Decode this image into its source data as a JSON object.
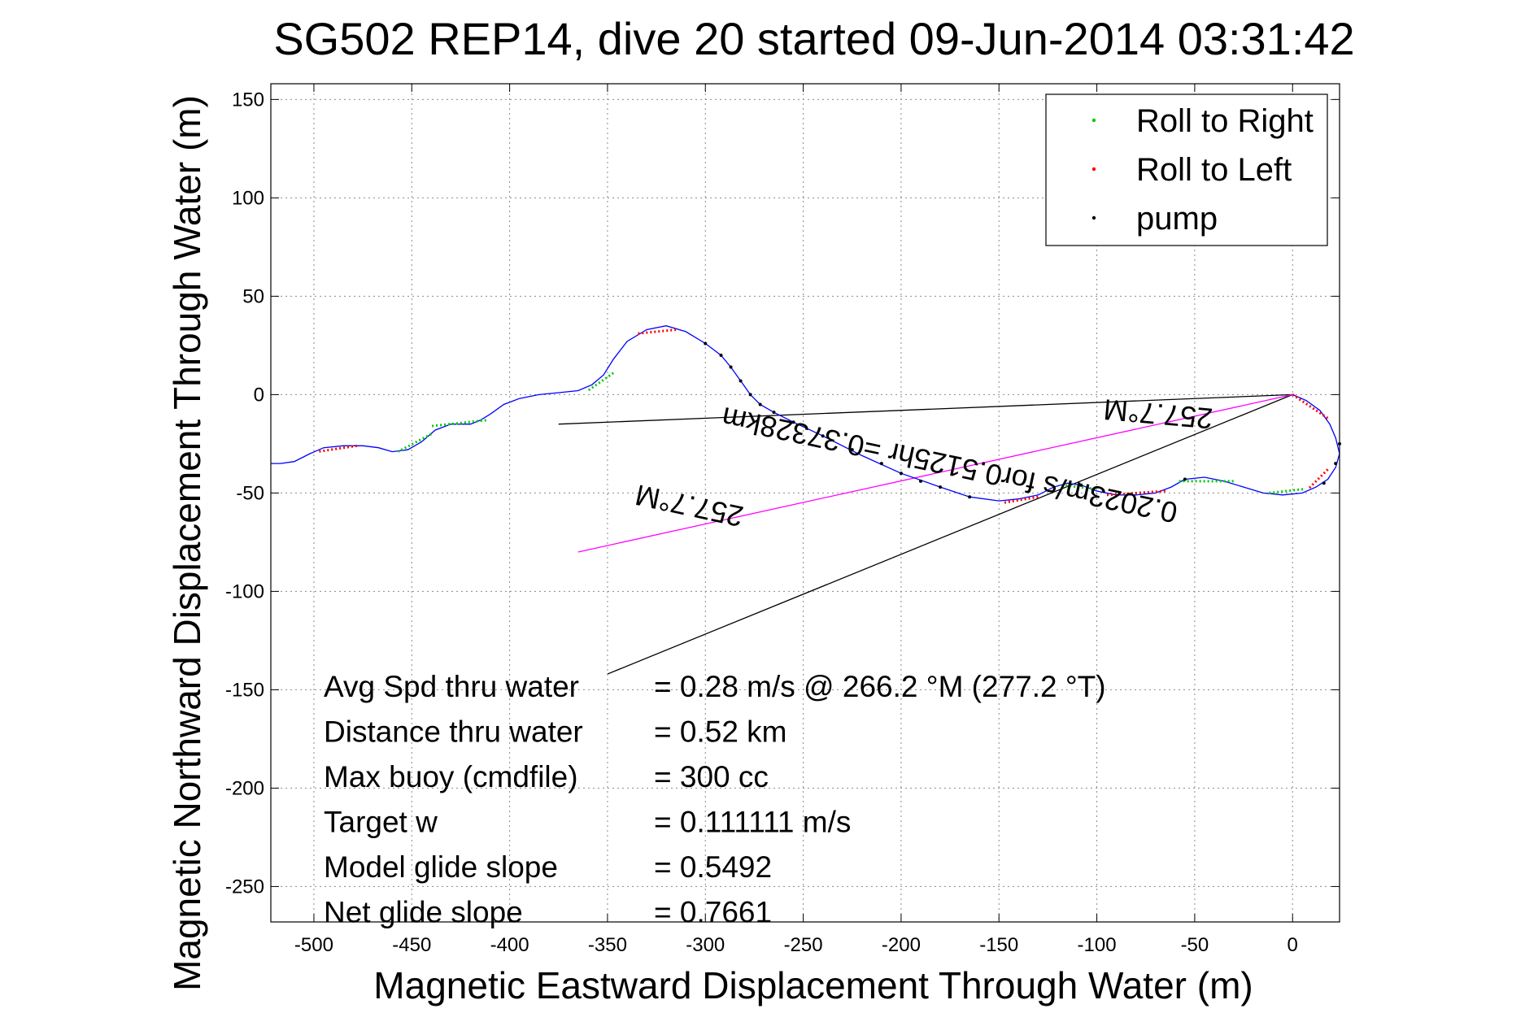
{
  "chart_data": {
    "type": "line",
    "title": "SG502 REP14, dive 20 started 09-Jun-2014 03:31:42",
    "xlabel": "Magnetic Eastward Displacement Through Water (m)",
    "ylabel": "Magnetic Northward Displacement Through Water (m)",
    "xlim": [
      -522,
      24
    ],
    "ylim": [
      -268,
      158
    ],
    "xticks": [
      -500,
      -450,
      -400,
      -350,
      -300,
      -250,
      -200,
      -150,
      -100,
      -50,
      0
    ],
    "yticks": [
      -250,
      -200,
      -150,
      -100,
      -50,
      0,
      50,
      100,
      150
    ],
    "grid": true,
    "legend_position": "top-right",
    "legend": [
      {
        "label": "Roll to Right",
        "color": "#00cc00"
      },
      {
        "label": "Roll to Left",
        "color": "#ff0000"
      },
      {
        "label": "pump",
        "color": "#000000"
      }
    ],
    "track": {
      "color": "#0000ff",
      "points": [
        [
          0,
          0
        ],
        [
          7,
          -3
        ],
        [
          14,
          -8
        ],
        [
          19,
          -15
        ],
        [
          22,
          -22
        ],
        [
          24,
          -30
        ],
        [
          22,
          -37
        ],
        [
          18,
          -43
        ],
        [
          12,
          -47
        ],
        [
          5,
          -50
        ],
        [
          -5,
          -51
        ],
        [
          -15,
          -50
        ],
        [
          -25,
          -47
        ],
        [
          -35,
          -44
        ],
        [
          -45,
          -42
        ],
        [
          -55,
          -43
        ],
        [
          -62,
          -47
        ],
        [
          -70,
          -50
        ],
        [
          -80,
          -51
        ],
        [
          -90,
          -51
        ],
        [
          -100,
          -49
        ],
        [
          -108,
          -46
        ],
        [
          -115,
          -45
        ],
        [
          -122,
          -47
        ],
        [
          -130,
          -51
        ],
        [
          -140,
          -53
        ],
        [
          -150,
          -54
        ],
        [
          -165,
          -52
        ],
        [
          -180,
          -47
        ],
        [
          -200,
          -40
        ],
        [
          -220,
          -31
        ],
        [
          -240,
          -21
        ],
        [
          -255,
          -14
        ],
        [
          -265,
          -9
        ],
        [
          -272,
          -5
        ],
        [
          -277,
          0
        ],
        [
          -282,
          7
        ],
        [
          -287,
          14
        ],
        [
          -292,
          20
        ],
        [
          -300,
          26
        ],
        [
          -310,
          32
        ],
        [
          -320,
          35
        ],
        [
          -330,
          33
        ],
        [
          -340,
          27
        ],
        [
          -347,
          18
        ],
        [
          -352,
          10
        ],
        [
          -358,
          5
        ],
        [
          -365,
          2
        ],
        [
          -375,
          1
        ],
        [
          -385,
          0
        ],
        [
          -395,
          -2
        ],
        [
          -403,
          -5
        ],
        [
          -410,
          -10
        ],
        [
          -415,
          -13
        ],
        [
          -420,
          -15
        ],
        [
          -430,
          -15
        ],
        [
          -438,
          -18
        ],
        [
          -445,
          -24
        ],
        [
          -452,
          -28
        ],
        [
          -460,
          -29
        ],
        [
          -467,
          -27
        ],
        [
          -475,
          -26
        ],
        [
          -485,
          -26
        ],
        [
          -495,
          -27
        ],
        [
          -502,
          -30
        ],
        [
          -510,
          -34
        ],
        [
          -517,
          -35
        ],
        [
          -522,
          -35
        ]
      ]
    },
    "roll_right_segments": [
      [
        -12,
        -50,
        6,
        -48
      ],
      [
        -58,
        -44,
        -30,
        -44
      ],
      [
        -118,
        -46,
        -100,
        -48
      ],
      [
        -347,
        11,
        -360,
        2
      ],
      [
        -440,
        -20,
        -457,
        -29
      ],
      [
        -412,
        -13,
        -440,
        -16
      ]
    ],
    "roll_left_segments": [
      [
        0,
        0,
        18,
        -12
      ],
      [
        18,
        -38,
        8,
        -48
      ],
      [
        -65,
        -49,
        -95,
        -51
      ],
      [
        -130,
        -52,
        -148,
        -55
      ],
      [
        -315,
        33,
        -335,
        31
      ],
      [
        -478,
        -26,
        -498,
        -29
      ]
    ],
    "pump_markers": [
      [
        -300,
        26
      ],
      [
        -292,
        20
      ],
      [
        -287,
        14
      ],
      [
        -282,
        7
      ],
      [
        -277,
        0
      ],
      [
        -272,
        -5
      ],
      [
        -265,
        -9
      ],
      [
        -255,
        -14
      ],
      [
        -240,
        -21
      ],
      [
        -225,
        -28
      ],
      [
        -210,
        -35
      ],
      [
        -200,
        -40
      ],
      [
        -190,
        -44
      ],
      [
        -180,
        -47
      ],
      [
        -165,
        -52
      ],
      [
        24,
        -25
      ],
      [
        22,
        -35
      ],
      [
        16,
        -45
      ],
      [
        -55,
        -43
      ],
      [
        -108,
        -46
      ]
    ],
    "reference_lines": [
      {
        "color": "#000000",
        "from": [
          0,
          0
        ],
        "to": [
          -375,
          -15
        ]
      },
      {
        "color": "#000000",
        "from": [
          0,
          0
        ],
        "to": [
          -350,
          -142
        ]
      },
      {
        "color": "#ff00ff",
        "from": [
          0,
          0
        ],
        "to": [
          -365,
          -80
        ]
      }
    ],
    "annotations": {
      "heading_near": "257.7°M",
      "heading_far": "257.7°M",
      "current": "0.2023m/s for0.5125hr =0.37328km"
    },
    "stats": [
      {
        "label": "Avg Spd thru water",
        "value": "=  0.28 m/s @ 266.2 °M (277.2 °T)"
      },
      {
        "label": "Distance thru water",
        "value": "=  0.52 km"
      },
      {
        "label": "Max buoy (cmdfile)",
        "value": "= 300 cc"
      },
      {
        "label": "Target w",
        "value": "= 0.111111 m/s"
      },
      {
        "label": "Model glide slope",
        "value": "= 0.5492"
      },
      {
        "label": "Net glide slope",
        "value": "= 0.7661"
      }
    ]
  }
}
